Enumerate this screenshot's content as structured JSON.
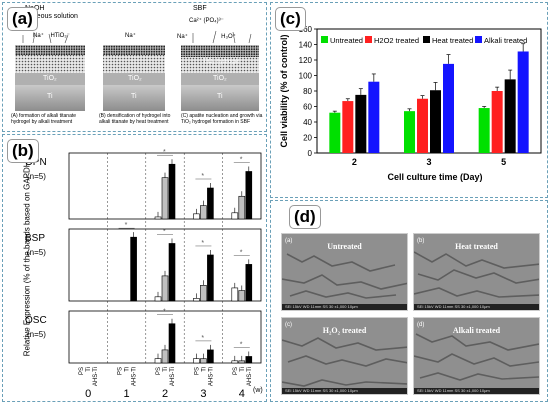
{
  "panel_a": {
    "tag": "(a)",
    "naoh": "NaOH",
    "aq": "aqueous solution",
    "sbf": "SBF",
    "tio2": "TiO₂",
    "ti": "Ti",
    "hydrogel": "TiO₂ hydrogel",
    "captions": [
      "(A) formation of alkali titanate hydrogel by alkali treatment",
      "(B) densification of hydrogel into alkali titanate by heat treatment",
      "(C) apatite nucleation and growth via TiO₂ hydrogel formation in SBF"
    ]
  },
  "panel_b": {
    "tag": "(b)",
    "ylabel": "Relative Expression (% of the bands based on GAPDH)",
    "groups": [
      "OPN",
      "BSP",
      "OSC"
    ],
    "n": "(n=5)",
    "treat": [
      "PS",
      "Ti",
      "AHS-Ti"
    ],
    "weeks": [
      "0",
      "1",
      "2",
      "3",
      "4"
    ],
    "unit": "(w)"
  },
  "panel_c": {
    "tag": "(c)"
  },
  "panel_d": {
    "tag": "(d)",
    "images": [
      {
        "letter": "(a)",
        "label": "Untreated"
      },
      {
        "letter": "(b)",
        "label": "Heat treated"
      },
      {
        "letter": "(c)",
        "label": "H₂O₂ treated"
      },
      {
        "letter": "(d)",
        "label": "Alkali treated"
      }
    ],
    "foot": "SEI  15kV  WD 11mm  SS 30  x1,000  10μm"
  },
  "chart_data": [
    {
      "type": "bar",
      "panel": "b",
      "groups": [
        "OPN",
        "BSP",
        "OSC"
      ],
      "weeks": [
        "0",
        "1",
        "2",
        "3",
        "4"
      ],
      "series_names": [
        "PS",
        "Ti",
        "AHS-Ti"
      ],
      "series_colors": [
        "#ffffff",
        "#c0c0c0",
        "#000000"
      ],
      "ylim": [
        0,
        100
      ],
      "values": {
        "OPN": [
          [
            0,
            0,
            0
          ],
          [
            0,
            0,
            0
          ],
          [
            2,
            40,
            53
          ],
          [
            5,
            13,
            30
          ],
          [
            6,
            22,
            46
          ]
        ],
        "BSP": [
          [
            0,
            0,
            0
          ],
          [
            0,
            0,
            122
          ],
          [
            8,
            48,
            110
          ],
          [
            5,
            30,
            88
          ],
          [
            25,
            20,
            70
          ]
        ],
        "OSC": [
          [
            0,
            0,
            0
          ],
          [
            0,
            0,
            0
          ],
          [
            2,
            6,
            18
          ],
          [
            2,
            2,
            6
          ],
          [
            1,
            1,
            3
          ]
        ]
      }
    },
    {
      "type": "bar",
      "panel": "c",
      "categories": [
        "2",
        "3",
        "5"
      ],
      "series": [
        {
          "name": "Untreated",
          "color": "#00e000",
          "values": [
            52,
            54,
            58
          ]
        },
        {
          "name": "H2O2 treated",
          "color": "#ff2020",
          "values": [
            67,
            70,
            80
          ]
        },
        {
          "name": "Heat treated",
          "color": "#000000",
          "values": [
            75,
            81,
            95
          ]
        },
        {
          "name": "Alkali treated",
          "color": "#1414ff",
          "values": [
            92,
            115,
            131
          ]
        }
      ],
      "errors": [
        [
          2,
          3,
          2
        ],
        [
          3,
          4,
          5
        ],
        [
          8,
          10,
          12
        ],
        [
          10,
          12,
          10
        ]
      ],
      "xlabel": "Cell culture time (Day)",
      "ylabel": "Cell viability (% of control)",
      "ylim": [
        0,
        160
      ],
      "yticks": [
        0,
        20,
        40,
        60,
        80,
        100,
        120,
        140,
        160
      ]
    }
  ]
}
